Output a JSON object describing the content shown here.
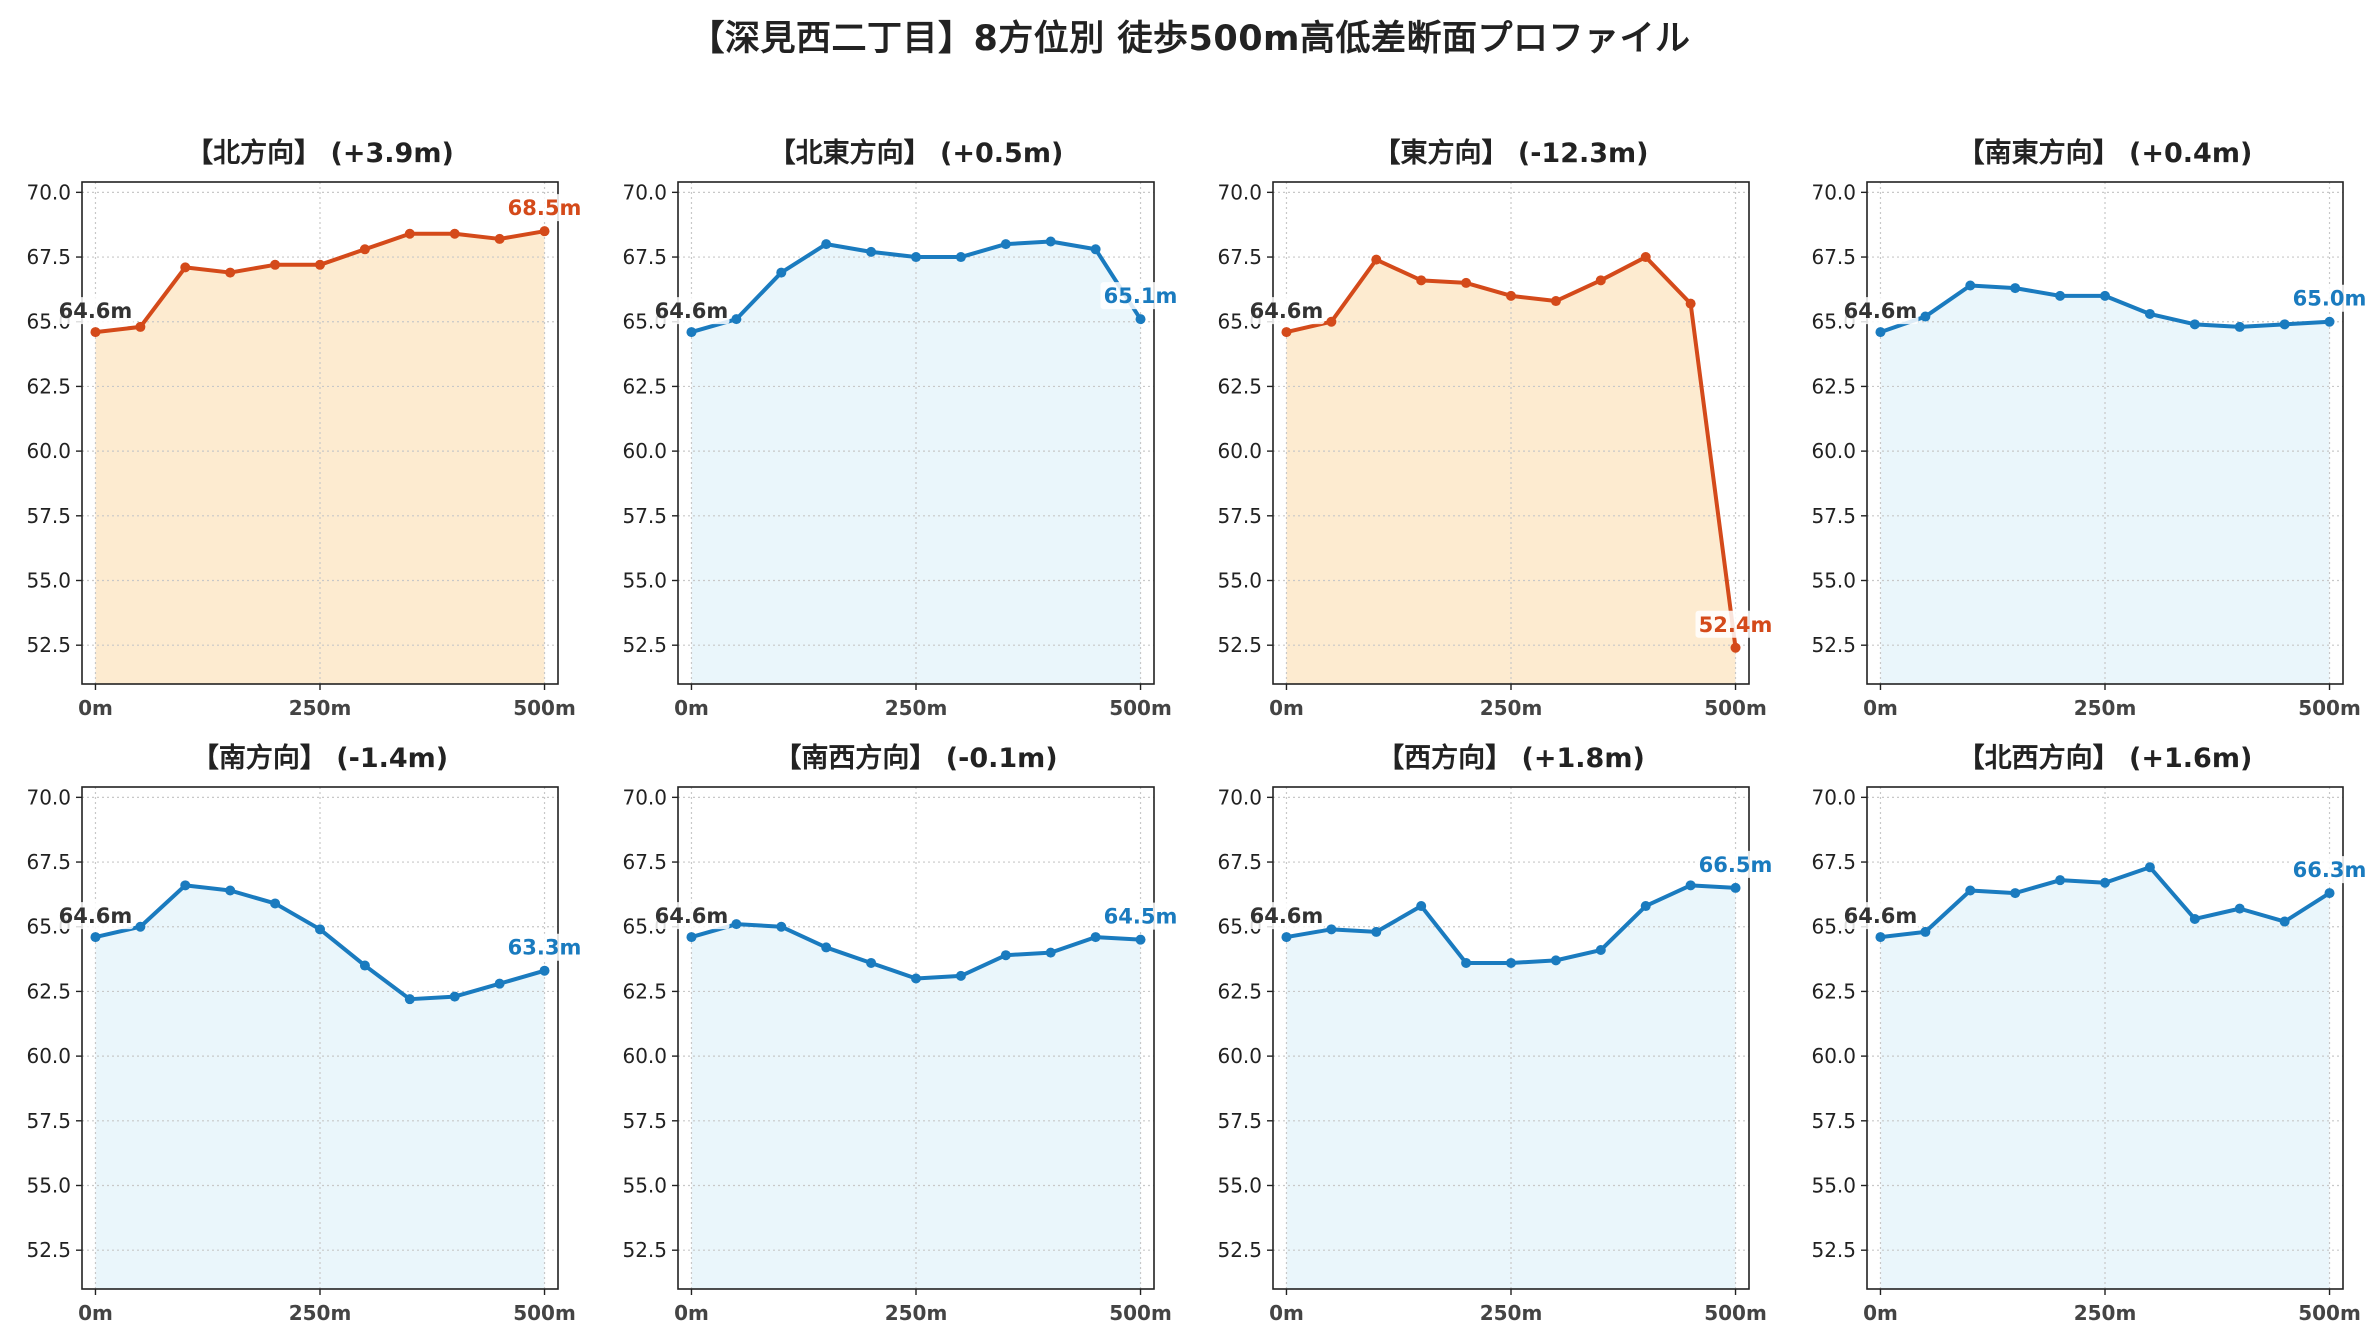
{
  "title": "【深見西二丁目】8方位別 徒歩500m高低差断面プロファイル",
  "colors": {
    "up": "#d44a1a",
    "up_fill": "#fdebd0",
    "down": "#1a7bbf",
    "down_fill": "#eaf6fb",
    "start_label": "#333333"
  },
  "chart_data": [
    {
      "type": "line",
      "title": "【北方向】 (+3.9m)",
      "trend": "up",
      "x": [
        0,
        50,
        100,
        150,
        200,
        250,
        300,
        350,
        400,
        450,
        500
      ],
      "y": [
        64.6,
        64.8,
        67.1,
        66.9,
        67.2,
        67.2,
        67.8,
        68.4,
        68.4,
        68.2,
        68.5
      ],
      "start_label": "64.6m",
      "end_label": "68.5m"
    },
    {
      "type": "line",
      "title": "【北東方向】 (+0.5m)",
      "trend": "down",
      "x": [
        0,
        50,
        100,
        150,
        200,
        250,
        300,
        350,
        400,
        450,
        500
      ],
      "y": [
        64.6,
        65.1,
        66.9,
        68.0,
        67.7,
        67.5,
        67.5,
        68.0,
        68.1,
        67.8,
        65.1
      ],
      "start_label": "64.6m",
      "end_label": "65.1m"
    },
    {
      "type": "line",
      "title": "【東方向】 (-12.3m)",
      "trend": "up",
      "x": [
        0,
        50,
        100,
        150,
        200,
        250,
        300,
        350,
        400,
        450,
        500
      ],
      "y": [
        64.6,
        65.0,
        67.4,
        66.6,
        66.5,
        66.0,
        65.8,
        66.6,
        67.5,
        65.7,
        52.4
      ],
      "start_label": "64.6m",
      "end_label": "52.4m"
    },
    {
      "type": "line",
      "title": "【南東方向】 (+0.4m)",
      "trend": "down",
      "x": [
        0,
        50,
        100,
        150,
        200,
        250,
        300,
        350,
        400,
        450,
        500
      ],
      "y": [
        64.6,
        65.2,
        66.4,
        66.3,
        66.0,
        66.0,
        65.3,
        64.9,
        64.8,
        64.9,
        65.0
      ],
      "start_label": "64.6m",
      "end_label": "65.0m"
    },
    {
      "type": "line",
      "title": "【南方向】 (-1.4m)",
      "trend": "down",
      "x": [
        0,
        50,
        100,
        150,
        200,
        250,
        300,
        350,
        400,
        450,
        500
      ],
      "y": [
        64.6,
        65.0,
        66.6,
        66.4,
        65.9,
        64.9,
        63.5,
        62.2,
        62.3,
        62.8,
        63.3
      ],
      "start_label": "64.6m",
      "end_label": "63.3m"
    },
    {
      "type": "line",
      "title": "【南西方向】 (-0.1m)",
      "trend": "down",
      "x": [
        0,
        50,
        100,
        150,
        200,
        250,
        300,
        350,
        400,
        450,
        500
      ],
      "y": [
        64.6,
        65.1,
        65.0,
        64.2,
        63.6,
        63.0,
        63.1,
        63.9,
        64.0,
        64.6,
        64.5
      ],
      "start_label": "64.6m",
      "end_label": "64.5m"
    },
    {
      "type": "line",
      "title": "【西方向】 (+1.8m)",
      "trend": "down",
      "x": [
        0,
        50,
        100,
        150,
        200,
        250,
        300,
        350,
        400,
        450,
        500
      ],
      "y": [
        64.6,
        64.9,
        64.8,
        65.8,
        63.6,
        63.6,
        63.7,
        64.1,
        65.8,
        66.6,
        66.5
      ],
      "start_label": "64.6m",
      "end_label": "66.5m"
    },
    {
      "type": "line",
      "title": "【北西方向】 (+1.6m)",
      "trend": "down",
      "x": [
        0,
        50,
        100,
        150,
        200,
        250,
        300,
        350,
        400,
        450,
        500
      ],
      "y": [
        64.6,
        64.8,
        66.4,
        66.3,
        66.8,
        66.7,
        67.3,
        65.3,
        65.7,
        65.2,
        66.3
      ],
      "start_label": "64.6m",
      "end_label": "66.3m"
    }
  ],
  "axes": {
    "y_ticks": [
      "52.5",
      "55.0",
      "57.5",
      "60.0",
      "62.5",
      "65.0",
      "67.5",
      "70.0"
    ],
    "x_ticks": [
      "0m",
      "250m",
      "500m"
    ],
    "ylim": [
      51.0,
      70.4
    ],
    "xlim": [
      -15,
      515
    ],
    "grid": true
  }
}
